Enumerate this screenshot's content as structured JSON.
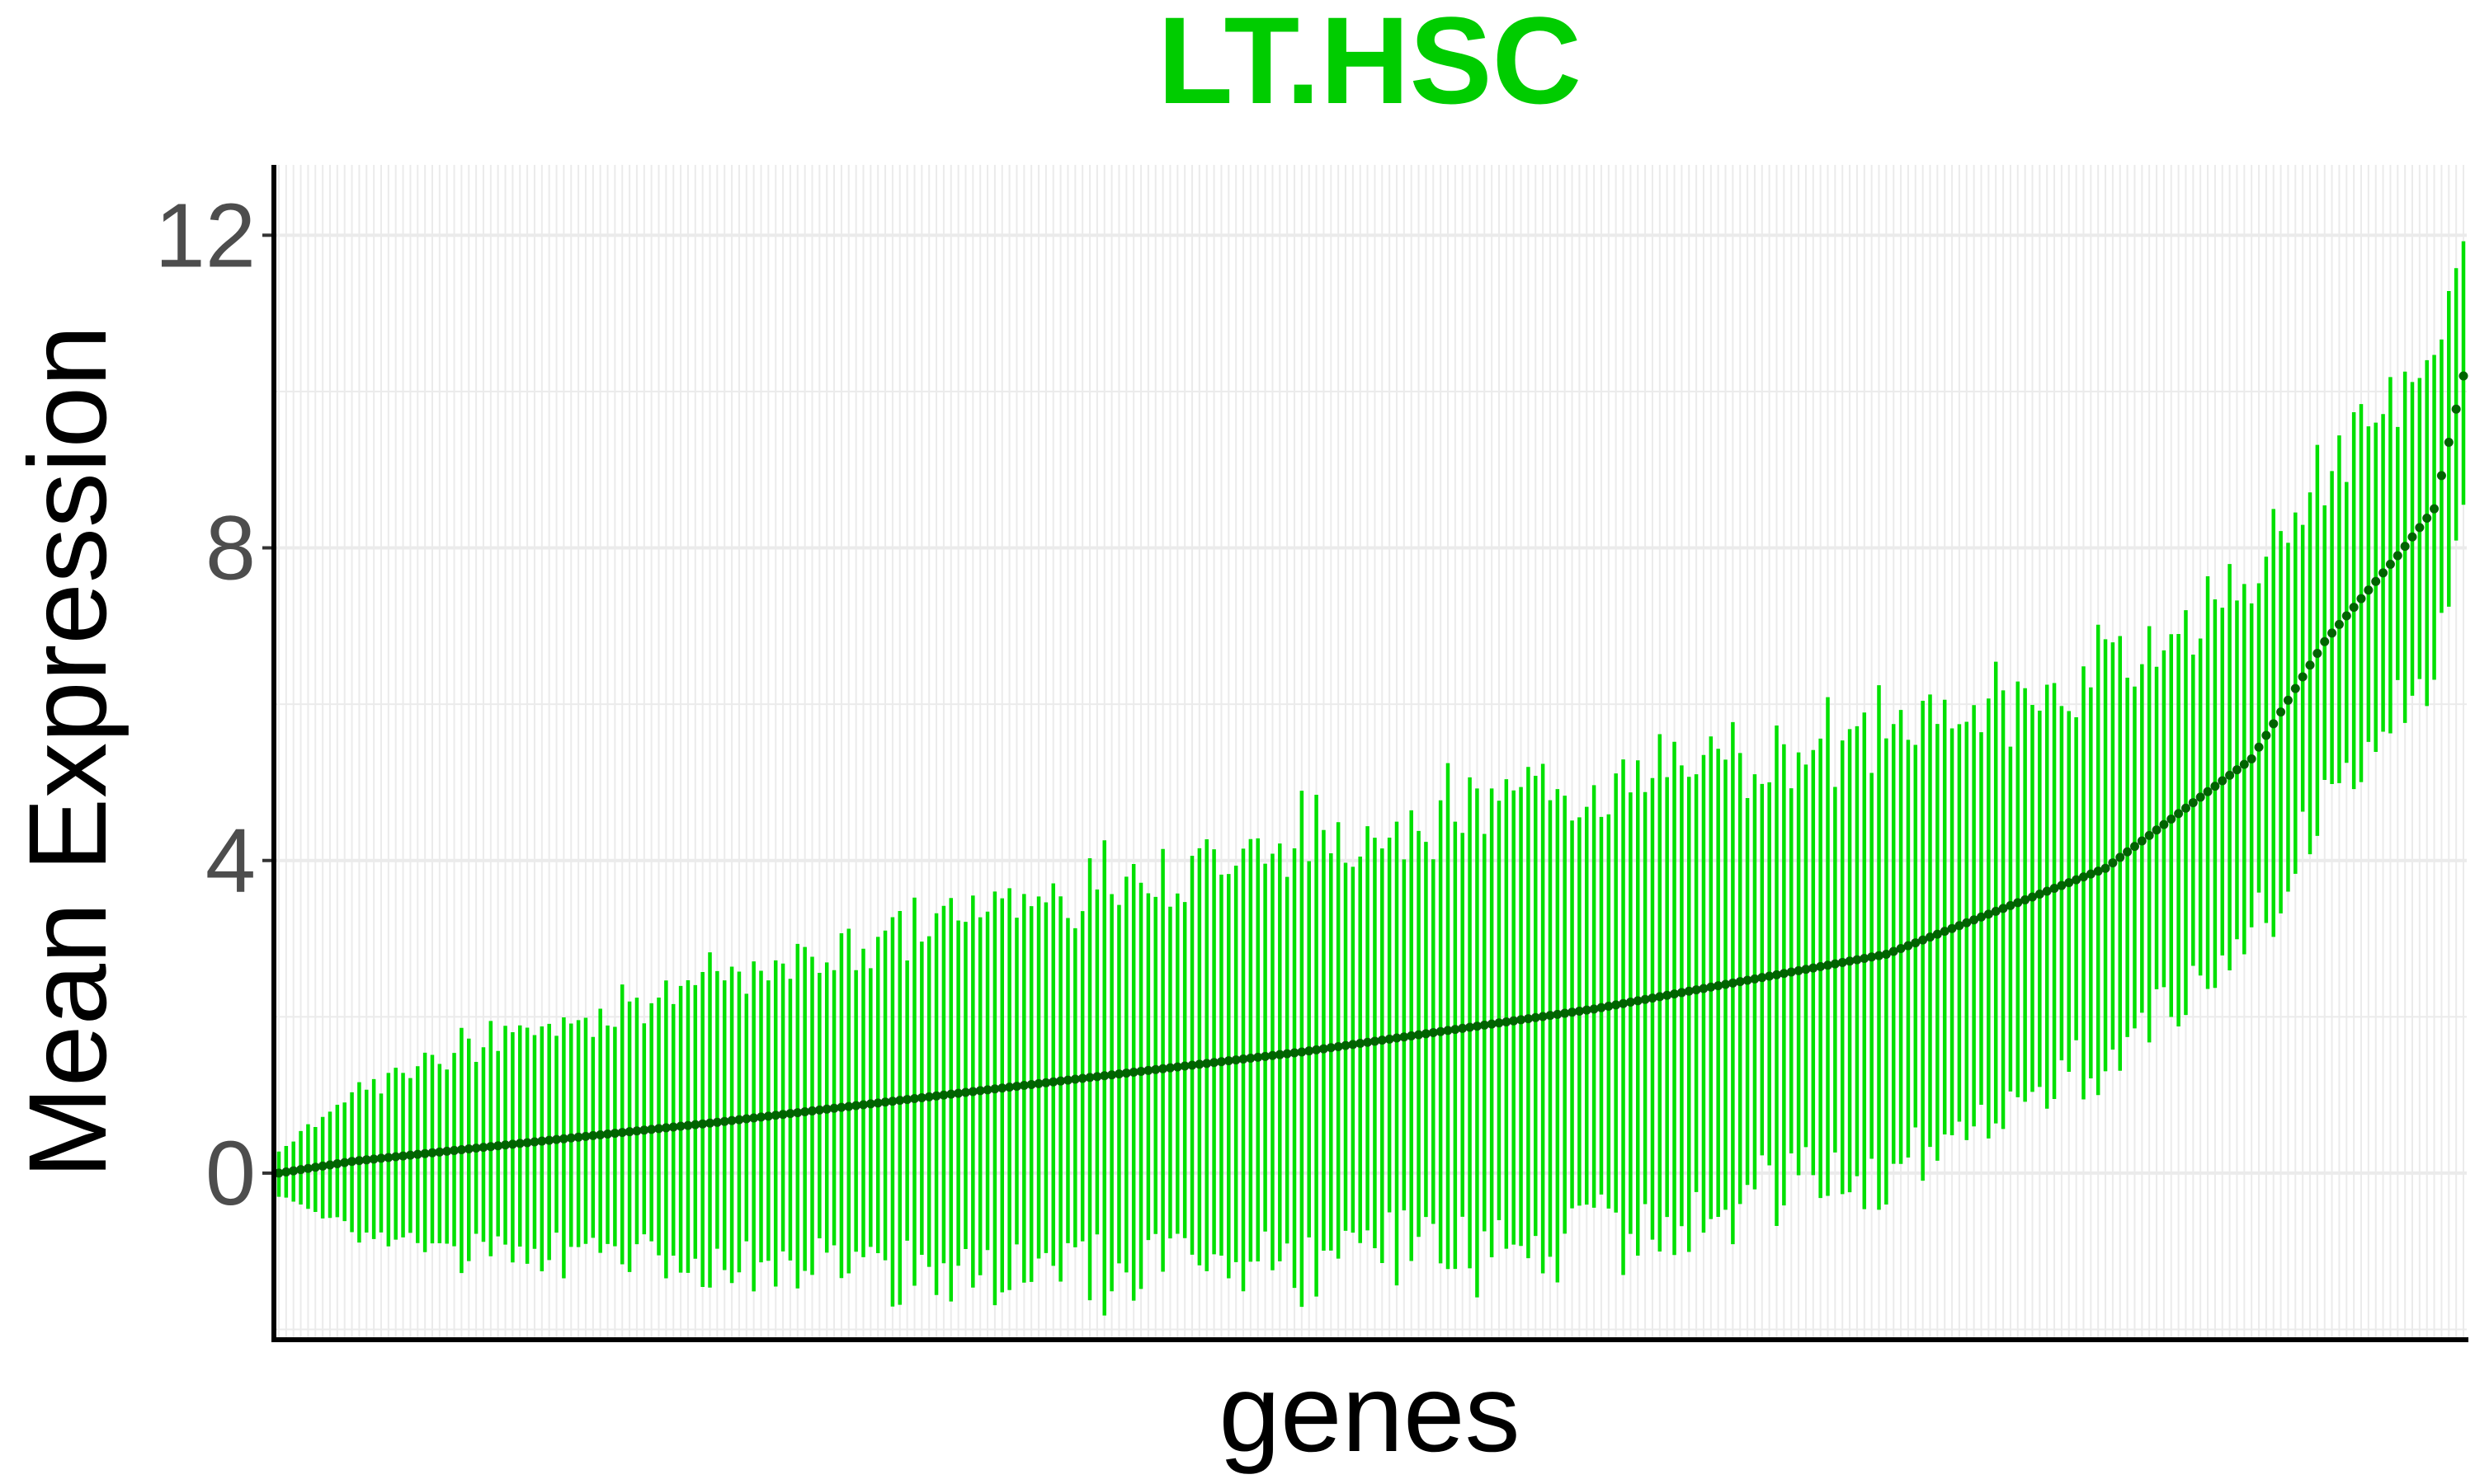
{
  "chart_data": {
    "type": "scatter",
    "title": "LT.HSC",
    "xlabel": "genes",
    "ylabel": "Mean Expression",
    "ylim": [
      -2.1,
      12.9
    ],
    "yticks": [
      0,
      4,
      8,
      12
    ],
    "ytick_labels": [
      "0",
      "4",
      "8",
      "12"
    ],
    "grid": true,
    "legend": "none",
    "n_genes": 300,
    "series": [
      {
        "points": "Mean Expression per gene, sorted ascending",
        "error_bars": "lower and upper extent per gene"
      }
    ],
    "mean_profile_anchors": {
      "gene_index": [
        0,
        10,
        30,
        60,
        100,
        140,
        180,
        220,
        250,
        260,
        270,
        280,
        290,
        295,
        299
      ],
      "mean": [
        0.0,
        0.15,
        0.35,
        0.65,
        1.1,
        1.55,
        2.1,
        2.8,
        3.9,
        4.6,
        5.3,
        6.8,
        7.9,
        8.5,
        10.2
      ]
    },
    "error_halfwidth_profile_anchors": {
      "gene_index": [
        0,
        10,
        30,
        60,
        100,
        140,
        180,
        220,
        250,
        270,
        290,
        299
      ],
      "halfwidth": [
        0.3,
        0.9,
        1.4,
        1.8,
        2.4,
        2.7,
        2.9,
        2.8,
        2.5,
        2.3,
        2.0,
        1.9
      ]
    },
    "colors": {
      "title": "#00cc00",
      "error_bars": "#00e000",
      "points": "#006400",
      "grid": "#ebebeb",
      "axis": "#000000",
      "tick_label": "#4d4d4d"
    }
  }
}
